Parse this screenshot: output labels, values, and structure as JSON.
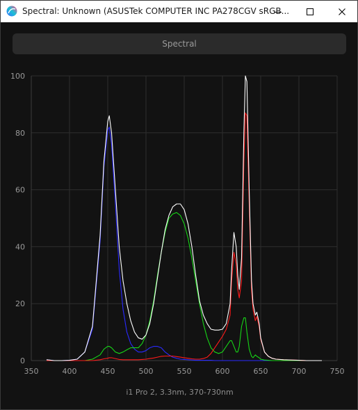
{
  "window": {
    "title": "Spectral: Unknown (ASUSTek COMPUTER INC PA278CGV sRGB...",
    "minimize_icon": "minimize-icon",
    "maximize_icon": "maximize-icon",
    "close_icon": "close-icon"
  },
  "toolbar": {
    "spectral_label": "Spectral"
  },
  "footer": {
    "instrument": "i1 Pro 2, 3.3nm, 370-730nm"
  },
  "colors": {
    "background": "#121212",
    "grid": "#2e2e2e",
    "tick_label": "#9a9a9a",
    "total": "#ffffff",
    "red": "#ff1a1a",
    "green": "#17d417",
    "blue": "#2a2aff"
  },
  "chart_data": {
    "type": "line",
    "title": "",
    "xlabel": "",
    "ylabel": "",
    "xlim": [
      350,
      750
    ],
    "ylim": [
      0,
      100
    ],
    "x_ticks": [
      350,
      400,
      450,
      500,
      550,
      600,
      650,
      700,
      750
    ],
    "y_ticks": [
      0,
      20,
      40,
      60,
      80,
      100
    ],
    "grid": true,
    "x": [
      370,
      380,
      390,
      400,
      410,
      420,
      430,
      440,
      445,
      450,
      452,
      455,
      460,
      465,
      470,
      475,
      480,
      485,
      490,
      495,
      500,
      505,
      510,
      515,
      520,
      525,
      530,
      535,
      540,
      545,
      550,
      555,
      560,
      565,
      570,
      575,
      580,
      585,
      590,
      595,
      600,
      605,
      610,
      612,
      615,
      618,
      620,
      622,
      625,
      628,
      630,
      632,
      635,
      638,
      640,
      643,
      645,
      648,
      650,
      655,
      660,
      665,
      670,
      680,
      690,
      700,
      710,
      720,
      730
    ],
    "series": [
      {
        "name": "",
        "color": "#ffffff",
        "values": [
          0.3,
          0,
          0,
          0.1,
          0.5,
          3,
          12,
          44,
          70,
          84,
          86,
          80,
          60,
          40,
          28,
          20,
          14,
          10,
          8,
          7.5,
          9,
          13,
          20,
          29,
          38,
          46,
          51,
          54,
          55,
          55,
          53,
          48,
          40,
          30,
          21,
          16,
          13,
          11,
          10.7,
          10.7,
          11,
          13,
          20,
          32,
          45,
          40,
          30,
          25,
          36,
          80,
          100,
          98,
          60,
          28,
          20,
          16,
          17,
          13,
          8,
          3,
          1.5,
          0.8,
          0.5,
          0.3,
          0.2,
          0.1,
          0,
          0,
          0
        ]
      },
      {
        "name": "",
        "color": "#2a2aff",
        "values": [
          0.3,
          0,
          0,
          0.1,
          0.5,
          3,
          11,
          42,
          68,
          81,
          82,
          76,
          55,
          32,
          18,
          10,
          6,
          4,
          3,
          3,
          3.5,
          4.5,
          5,
          5,
          4.5,
          3,
          2,
          1.2,
          0.8,
          0.5,
          0.4,
          0.3,
          0.2,
          0.1,
          0.1,
          0.1,
          0.1,
          0.1,
          0,
          0,
          0,
          0,
          0,
          0,
          0,
          0,
          0,
          0,
          0,
          0,
          0,
          0,
          0,
          0,
          0,
          0,
          0,
          0,
          0,
          0,
          0,
          0,
          0,
          0,
          0,
          0,
          0,
          0,
          0
        ]
      },
      {
        "name": "",
        "color": "#17d417",
        "values": [
          0,
          0,
          0,
          0,
          0,
          0,
          0.5,
          2,
          4,
          5,
          5,
          4.5,
          3,
          2.5,
          3,
          3.8,
          4.5,
          4.5,
          4.5,
          6,
          9,
          14,
          21,
          30,
          38,
          45,
          50,
          51.5,
          52,
          51,
          48,
          43,
          36,
          28,
          20,
          13,
          8,
          4.5,
          3,
          2.5,
          3,
          5,
          7,
          7,
          5,
          3,
          3,
          5,
          12,
          15,
          15,
          10,
          4,
          1.5,
          1,
          2,
          1.5,
          1,
          0.5,
          0.2,
          0.1,
          0,
          0,
          0,
          0,
          0,
          0,
          0,
          0
        ]
      },
      {
        "name": "",
        "color": "#ff1a1a",
        "values": [
          0,
          0,
          0,
          0,
          0,
          0,
          0,
          0.3,
          0.6,
          0.8,
          1,
          1,
          0.7,
          0.4,
          0.3,
          0.3,
          0.3,
          0.3,
          0.3,
          0.4,
          0.5,
          0.7,
          0.9,
          1.2,
          1.5,
          1.6,
          1.6,
          1.6,
          1.4,
          1.2,
          1,
          0.8,
          0.6,
          0.5,
          0.5,
          0.7,
          1.2,
          2.5,
          4.5,
          6.5,
          8.5,
          11,
          16,
          28,
          38,
          34,
          25,
          22,
          28,
          70,
          87,
          86,
          55,
          25,
          18,
          14,
          15.5,
          12,
          7.5,
          3,
          1.5,
          0.8,
          0.5,
          0.3,
          0.2,
          0.1,
          0,
          0,
          0
        ]
      }
    ]
  }
}
